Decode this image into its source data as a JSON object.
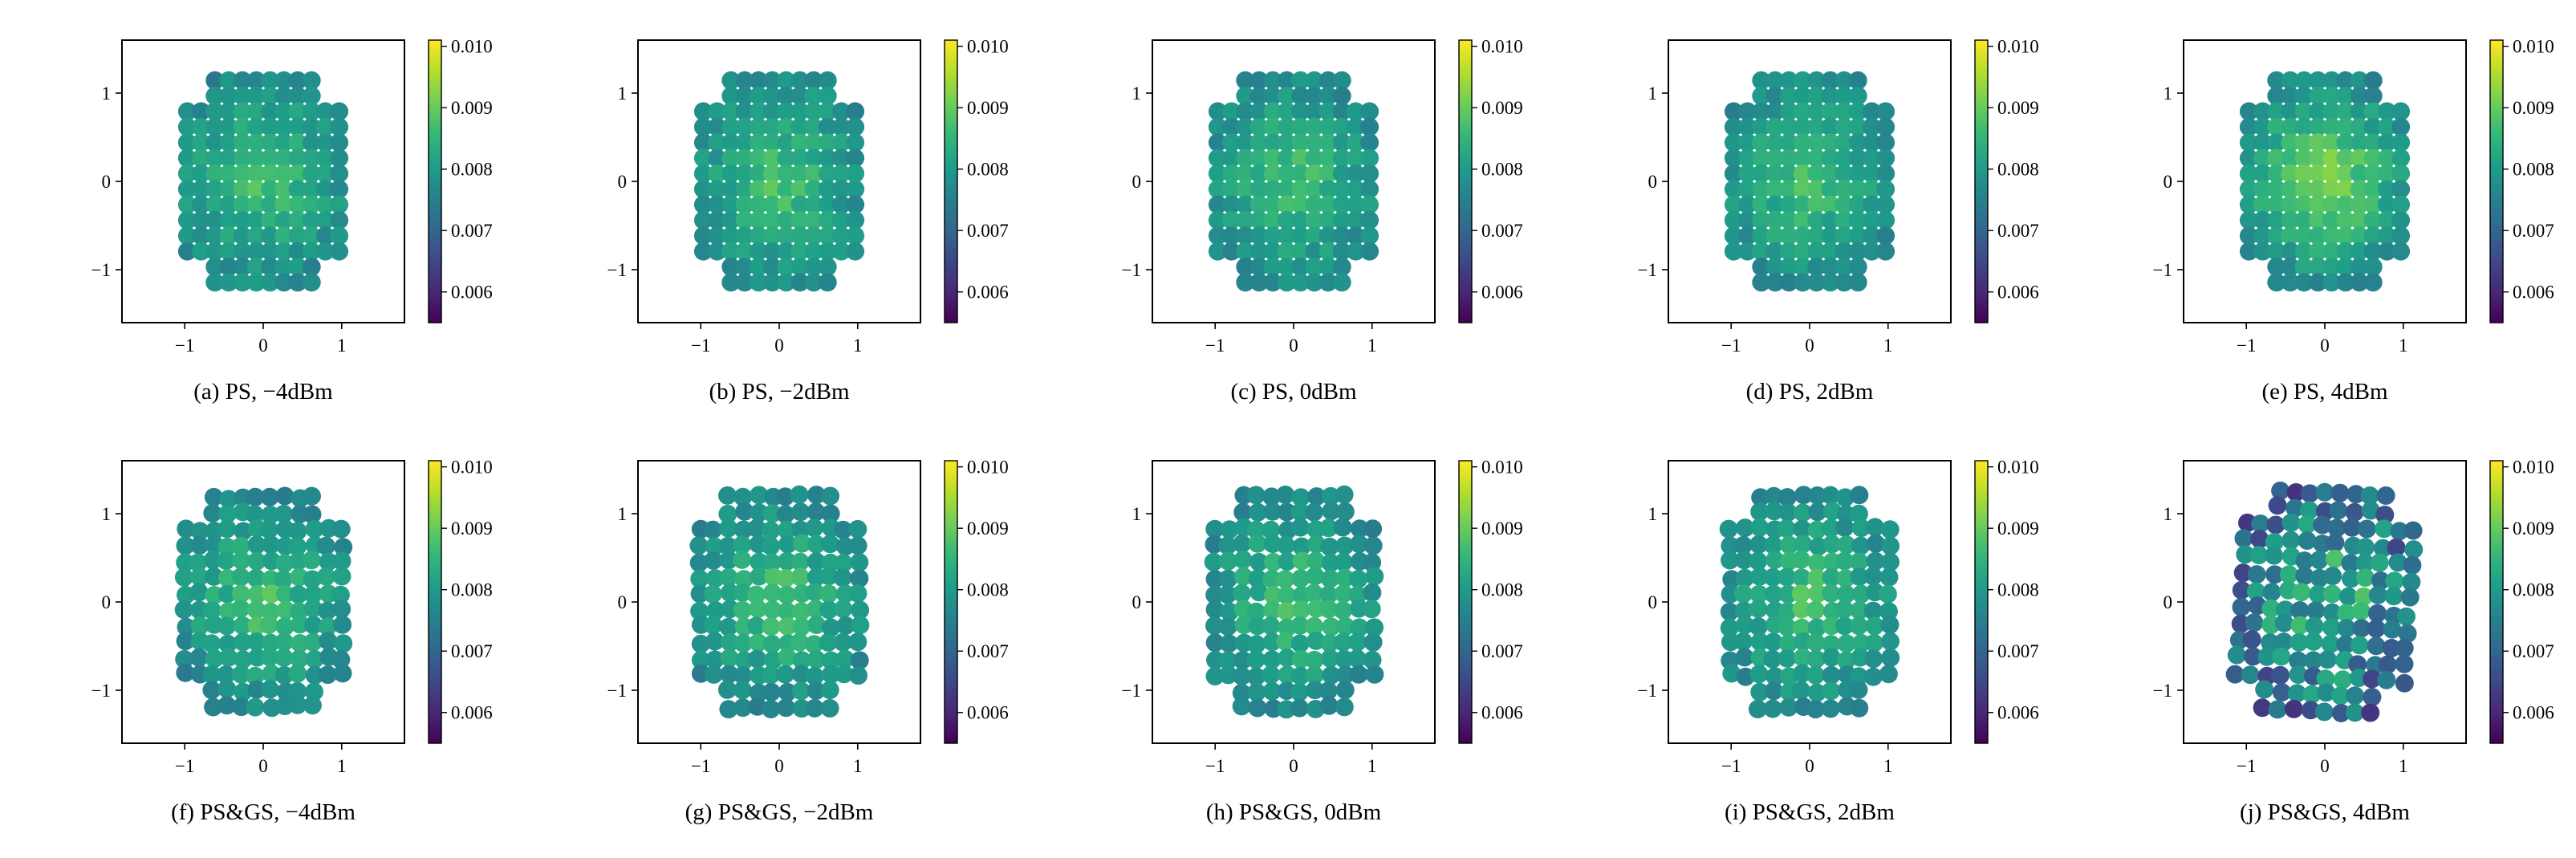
{
  "figure": {
    "colormap": [
      "#440154",
      "#482878",
      "#3e4989",
      "#31688e",
      "#26828e",
      "#1f9e89",
      "#35b779",
      "#6ece58",
      "#b5de2b",
      "#fde725"
    ]
  },
  "chart_data": [
    {
      "id": "a",
      "type": "scatter",
      "title": "(a) PS, −4dBm",
      "xlim": [
        -1.8,
        1.8
      ],
      "ylim": [
        -1.6,
        1.6
      ],
      "xticks": [
        -1,
        0,
        1
      ],
      "yticks": [
        -1,
        0,
        1
      ],
      "xtick_labels": [
        "−1",
        "0",
        "1"
      ],
      "ytick_labels": [
        "−1",
        "0",
        "1"
      ],
      "clim": [
        0.0055,
        0.0101
      ],
      "colorbar_ticks": [
        0.006,
        0.007,
        0.008,
        0.009,
        0.01
      ],
      "colorbar_tick_labels": [
        "0.006",
        "0.007",
        "0.008",
        "0.009",
        "0.010"
      ],
      "constellation": "PS",
      "grid_spacing": 0.176,
      "launch_power_dBm": -4,
      "color_scale": "compact"
    },
    {
      "id": "b",
      "type": "scatter",
      "title": "(b) PS, −2dBm",
      "xlim": [
        -1.8,
        1.8
      ],
      "ylim": [
        -1.6,
        1.6
      ],
      "xticks": [
        -1,
        0,
        1
      ],
      "yticks": [
        -1,
        0,
        1
      ],
      "xtick_labels": [
        "−1",
        "0",
        "1"
      ],
      "ytick_labels": [
        "−1",
        "0",
        "1"
      ],
      "clim": [
        0.0055,
        0.0101
      ],
      "colorbar_ticks": [
        0.006,
        0.007,
        0.008,
        0.009,
        0.01
      ],
      "colorbar_tick_labels": [
        "0.006",
        "0.007",
        "0.008",
        "0.009",
        "0.010"
      ],
      "constellation": "PS",
      "grid_spacing": 0.176,
      "launch_power_dBm": -2,
      "color_scale": "compact"
    },
    {
      "id": "c",
      "type": "scatter",
      "title": "(c) PS, 0dBm",
      "xlim": [
        -1.8,
        1.8
      ],
      "ylim": [
        -1.6,
        1.6
      ],
      "xticks": [
        -1,
        0,
        1
      ],
      "yticks": [
        -1,
        0,
        1
      ],
      "xtick_labels": [
        "−1",
        "0",
        "1"
      ],
      "ytick_labels": [
        "−1",
        "0",
        "1"
      ],
      "clim": [
        0.0055,
        0.0101
      ],
      "colorbar_ticks": [
        0.006,
        0.007,
        0.008,
        0.009,
        0.01
      ],
      "colorbar_tick_labels": [
        "0.006",
        "0.007",
        "0.008",
        "0.009",
        "0.010"
      ],
      "constellation": "PS",
      "grid_spacing": 0.176,
      "launch_power_dBm": 0,
      "color_scale": "compact"
    },
    {
      "id": "d",
      "type": "scatter",
      "title": "(d) PS, 2dBm",
      "xlim": [
        -1.8,
        1.8
      ],
      "ylim": [
        -1.6,
        1.6
      ],
      "xticks": [
        -1,
        0,
        1
      ],
      "yticks": [
        -1,
        0,
        1
      ],
      "xtick_labels": [
        "−1",
        "0",
        "1"
      ],
      "ytick_labels": [
        "−1",
        "0",
        "1"
      ],
      "clim": [
        0.0055,
        0.0101
      ],
      "colorbar_ticks": [
        0.006,
        0.007,
        0.008,
        0.009,
        0.01
      ],
      "colorbar_tick_labels": [
        "0.006",
        "0.007",
        "0.008",
        "0.009",
        "0.010"
      ],
      "constellation": "PS",
      "grid_spacing": 0.176,
      "launch_power_dBm": 2,
      "color_scale": "compact"
    },
    {
      "id": "e",
      "type": "scatter",
      "title": "(e) PS, 4dBm",
      "xlim": [
        -1.8,
        1.8
      ],
      "ylim": [
        -1.6,
        1.6
      ],
      "xticks": [
        -1,
        0,
        1
      ],
      "yticks": [
        -1,
        0,
        1
      ],
      "xtick_labels": [
        "−1",
        "0",
        "1"
      ],
      "ytick_labels": [
        "−1",
        "0",
        "1"
      ],
      "clim": [
        0.0055,
        0.0101
      ],
      "colorbar_ticks": [
        0.006,
        0.007,
        0.008,
        0.009,
        0.01
      ],
      "colorbar_tick_labels": [
        "0.006",
        "0.007",
        "0.008",
        "0.009",
        "0.010"
      ],
      "constellation": "PS",
      "grid_spacing": 0.176,
      "launch_power_dBm": 4,
      "color_scale": "compact"
    },
    {
      "id": "f",
      "type": "scatter",
      "title": "(f) PS&GS, −4dBm",
      "xlim": [
        -1.8,
        1.8
      ],
      "ylim": [
        -1.6,
        1.6
      ],
      "xticks": [
        -1,
        0,
        1
      ],
      "yticks": [
        -1,
        0,
        1
      ],
      "xtick_labels": [
        "−1",
        "0",
        "1"
      ],
      "ytick_labels": [
        "−1",
        "0",
        "1"
      ],
      "clim": [
        0.0055,
        0.0101
      ],
      "colorbar_ticks": [
        0.006,
        0.007,
        0.008,
        0.009,
        0.01
      ],
      "colorbar_tick_labels": [
        "0.006",
        "0.007",
        "0.008",
        "0.009",
        "0.010"
      ],
      "constellation": "PS&GS",
      "grid_spacing": 0.182,
      "launch_power_dBm": -4,
      "color_scale": "compact"
    },
    {
      "id": "g",
      "type": "scatter",
      "title": "(g) PS&GS, −2dBm",
      "xlim": [
        -1.8,
        1.8
      ],
      "ylim": [
        -1.6,
        1.6
      ],
      "xticks": [
        -1,
        0,
        1
      ],
      "yticks": [
        -1,
        0,
        1
      ],
      "xtick_labels": [
        "−1",
        "0",
        "1"
      ],
      "ytick_labels": [
        "−1",
        "0",
        "1"
      ],
      "clim": [
        0.0055,
        0.0101
      ],
      "colorbar_ticks": [
        0.006,
        0.007,
        0.008,
        0.009,
        0.01
      ],
      "colorbar_tick_labels": [
        "0.006",
        "0.007",
        "0.008",
        "0.009",
        "0.010"
      ],
      "constellation": "PS&GS",
      "grid_spacing": 0.184,
      "launch_power_dBm": -2,
      "color_scale": "compact"
    },
    {
      "id": "h",
      "type": "scatter",
      "title": "(h) PS&GS, 0dBm",
      "xlim": [
        -1.8,
        1.8
      ],
      "ylim": [
        -1.6,
        1.6
      ],
      "xticks": [
        -1,
        0,
        1
      ],
      "yticks": [
        -1,
        0,
        1
      ],
      "xtick_labels": [
        "−1",
        "0",
        "1"
      ],
      "ytick_labels": [
        "−1",
        "0",
        "1"
      ],
      "clim": [
        0.0055,
        0.0101
      ],
      "colorbar_ticks": [
        0.006,
        0.007,
        0.008,
        0.009,
        0.01
      ],
      "colorbar_tick_labels": [
        "0.006",
        "0.007",
        "0.008",
        "0.009",
        "0.010"
      ],
      "constellation": "PS&GS",
      "grid_spacing": 0.184,
      "launch_power_dBm": 0,
      "color_scale": "compact"
    },
    {
      "id": "i",
      "type": "scatter",
      "title": "(i) PS&GS, 2dBm",
      "xlim": [
        -1.8,
        1.8
      ],
      "ylim": [
        -1.6,
        1.6
      ],
      "xticks": [
        -1,
        0,
        1
      ],
      "yticks": [
        -1,
        0,
        1
      ],
      "xtick_labels": [
        "−1",
        "0",
        "1"
      ],
      "ytick_labels": [
        "−1",
        "0",
        "1"
      ],
      "clim": [
        0.0055,
        0.0101
      ],
      "colorbar_ticks": [
        0.006,
        0.007,
        0.008,
        0.009,
        0.01
      ],
      "colorbar_tick_labels": [
        "0.006",
        "0.007",
        "0.008",
        "0.009",
        "0.010"
      ],
      "constellation": "PS&GS",
      "grid_spacing": 0.184,
      "launch_power_dBm": 2,
      "color_scale": "compact"
    },
    {
      "id": "j",
      "type": "scatter",
      "title": "(j) PS&GS, 4dBm",
      "xlim": [
        -1.8,
        1.8
      ],
      "ylim": [
        -1.6,
        1.6
      ],
      "xticks": [
        -1,
        0,
        1
      ],
      "yticks": [
        -1,
        0,
        1
      ],
      "xtick_labels": [
        "−1",
        "0",
        "1"
      ],
      "ytick_labels": [
        "−1",
        "0",
        "1"
      ],
      "clim": [
        0.0055,
        0.0101
      ],
      "colorbar_ticks": [
        0.006,
        0.007,
        0.008,
        0.009,
        0.01
      ],
      "colorbar_tick_labels": [
        "0.006",
        "0.007",
        "0.008",
        "0.009",
        "0.010"
      ],
      "constellation": "PS&GS",
      "grid_spacing": 0.19,
      "launch_power_dBm": 4,
      "color_scale": "spread"
    }
  ]
}
